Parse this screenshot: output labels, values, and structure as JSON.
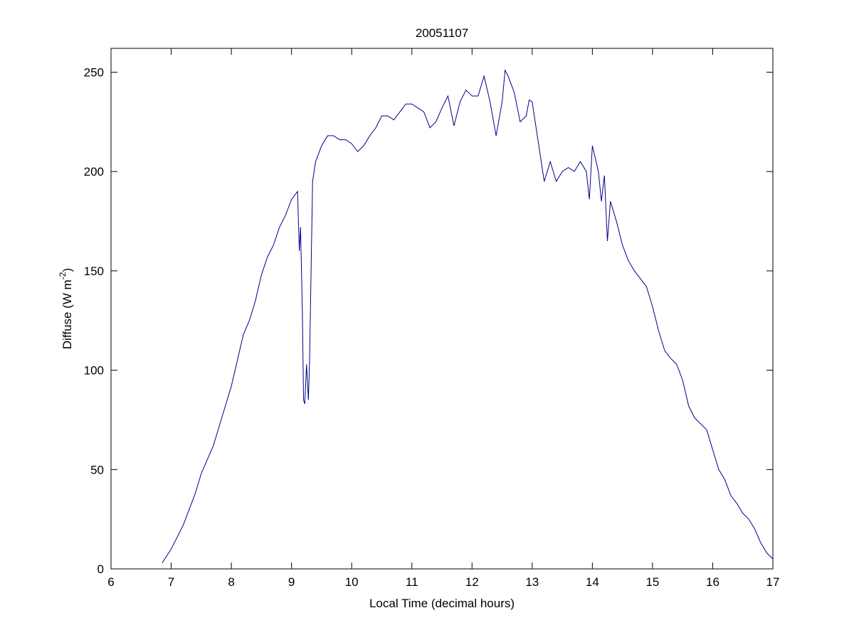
{
  "chart_data": {
    "type": "line",
    "title": "20051107",
    "xlabel": "Local Time (decimal hours)",
    "ylabel": [
      "Diffuse (W m",
      "-2",
      ")"
    ],
    "xlim": [
      6,
      17
    ],
    "xticks": [
      6,
      7,
      8,
      9,
      10,
      11,
      12,
      13,
      14,
      15,
      16,
      17
    ],
    "ylim": [
      0,
      262
    ],
    "yticks": [
      0,
      50,
      100,
      150,
      200,
      250
    ],
    "series": [
      {
        "color": "#00008b",
        "x": [
          6.85,
          7.0,
          7.2,
          7.4,
          7.5,
          7.7,
          7.8,
          8.0,
          8.1,
          8.2,
          8.3,
          8.4,
          8.5,
          8.6,
          8.7,
          8.8,
          8.9,
          9.0,
          9.1,
          9.13,
          9.15,
          9.18,
          9.2,
          9.22,
          9.25,
          9.28,
          9.3,
          9.35,
          9.4,
          9.5,
          9.6,
          9.7,
          9.8,
          9.9,
          10.0,
          10.1,
          10.2,
          10.3,
          10.4,
          10.5,
          10.6,
          10.7,
          10.8,
          10.9,
          11.0,
          11.1,
          11.2,
          11.3,
          11.4,
          11.5,
          11.6,
          11.7,
          11.8,
          11.9,
          12.0,
          12.1,
          12.2,
          12.3,
          12.4,
          12.5,
          12.55,
          12.6,
          12.7,
          12.8,
          12.9,
          12.95,
          13.0,
          13.1,
          13.2,
          13.3,
          13.4,
          13.5,
          13.6,
          13.7,
          13.8,
          13.9,
          13.95,
          14.0,
          14.1,
          14.15,
          14.2,
          14.25,
          14.3,
          14.4,
          14.5,
          14.6,
          14.7,
          14.8,
          14.9,
          15.0,
          15.1,
          15.2,
          15.3,
          15.4,
          15.5,
          15.6,
          15.7,
          15.8,
          15.9,
          16.0,
          16.1,
          16.2,
          16.3,
          16.4,
          16.5,
          16.6,
          16.7,
          16.8,
          16.9,
          17.0
        ],
        "values": [
          3,
          10,
          22,
          38,
          48,
          62,
          72,
          92,
          105,
          118,
          125,
          135,
          148,
          157,
          163,
          172,
          178,
          186,
          190,
          160,
          172,
          130,
          85,
          83,
          103,
          85,
          105,
          195,
          205,
          213,
          218,
          218,
          216,
          216,
          214,
          210,
          213,
          218,
          222,
          228,
          228,
          226,
          230,
          234,
          234,
          232,
          230,
          222,
          225,
          232,
          238,
          223,
          235,
          241,
          238,
          238,
          248,
          235,
          218,
          235,
          251,
          248,
          240,
          225,
          228,
          236,
          235,
          215,
          195,
          205,
          195,
          200,
          202,
          200,
          205,
          200,
          186,
          213,
          200,
          185,
          198,
          165,
          185,
          175,
          163,
          155,
          150,
          146,
          142,
          132,
          120,
          110,
          106,
          103,
          95,
          82,
          76,
          73,
          70,
          60,
          50,
          45,
          37,
          33,
          28,
          25,
          20,
          13,
          8,
          5
        ]
      }
    ]
  }
}
